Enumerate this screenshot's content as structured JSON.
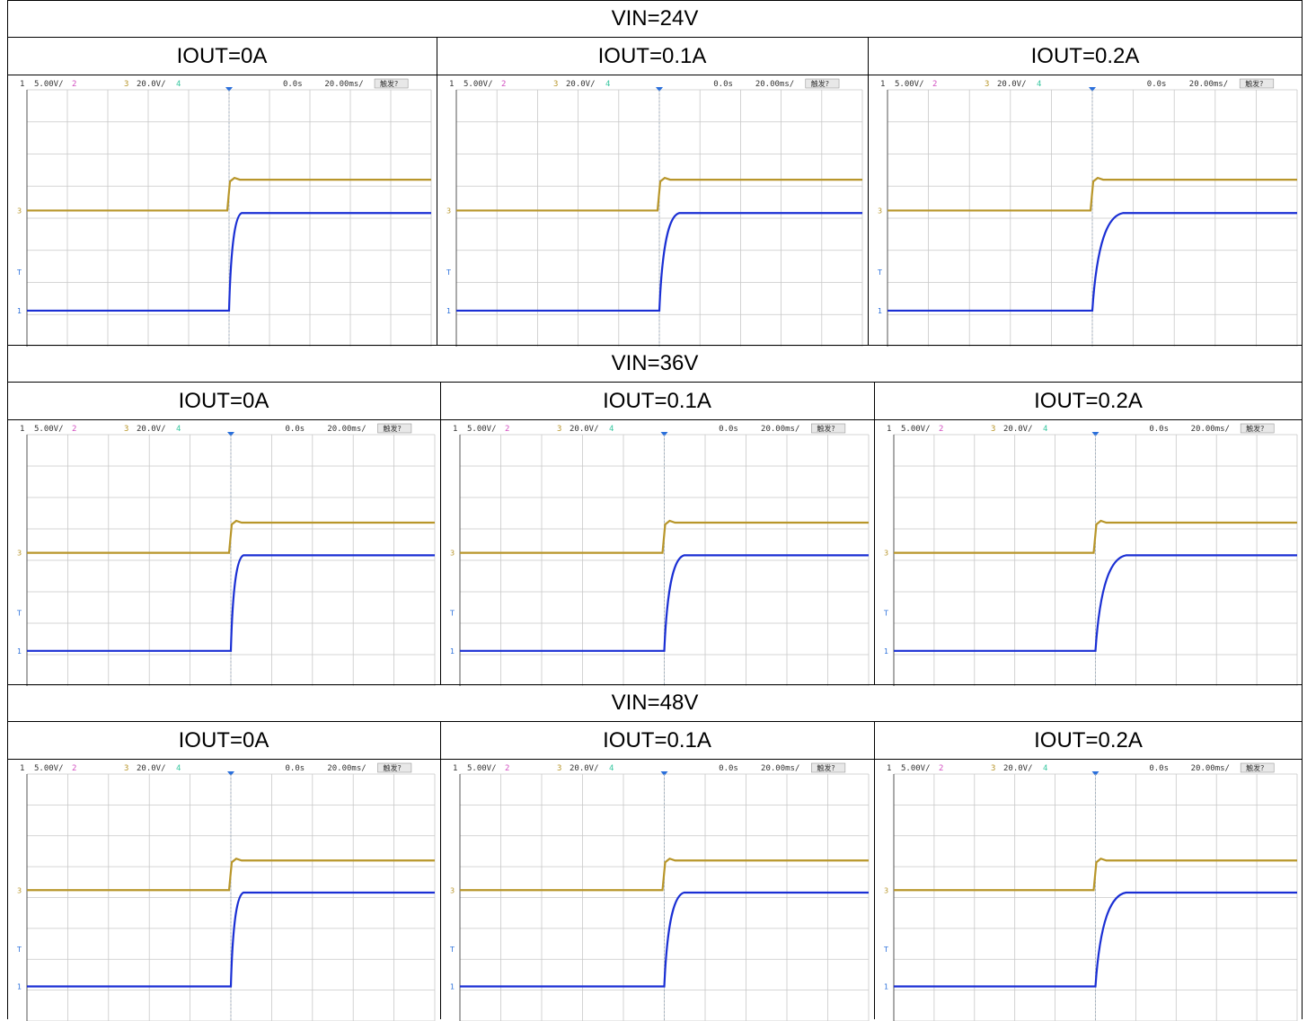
{
  "table": {
    "sections": [
      {
        "vin_label": "VIN=24V",
        "iout_labels": [
          "IOUT=0A",
          "IOUT=0.1A",
          "IOUT=0.2A"
        ]
      },
      {
        "vin_label": "VIN=36V",
        "iout_labels": [
          "IOUT=0A",
          "IOUT=0.1A",
          "IOUT=0.2A"
        ]
      },
      {
        "vin_label": "VIN=48V",
        "iout_labels": [
          "IOUT=0A",
          "IOUT=0.1A",
          "IOUT=0.2A"
        ]
      }
    ]
  },
  "scope": {
    "ch1_scale": "5.00V/",
    "ch2_label": "2",
    "ch3_scale": "20.0V/",
    "ch4_label": "4",
    "time_offset": "0.0s",
    "time_scale": "20.00ms/",
    "trigger_label": "触发?",
    "ch1_marker": "1",
    "ch3_marker": "3",
    "trigger_marker": "T",
    "colors": {
      "ch1": "#1a2fd4",
      "ch2": "#d24fc0",
      "ch3": "#b8962a",
      "ch4": "#38c7a0",
      "grid": "#c8c8c8"
    },
    "captures": [
      {
        "vin": "24V",
        "iout": "0A",
        "ch3_rise_step": 0.6,
        "ch1_rise_shape": "fast"
      },
      {
        "vin": "24V",
        "iout": "0.1A",
        "ch3_rise_step": 0.6,
        "ch1_rise_shape": "medium"
      },
      {
        "vin": "24V",
        "iout": "0.2A",
        "ch3_rise_step": 0.6,
        "ch1_rise_shape": "slow"
      },
      {
        "vin": "36V",
        "iout": "0A",
        "ch3_rise_step": 0.9,
        "ch1_rise_shape": "fast"
      },
      {
        "vin": "36V",
        "iout": "0.1A",
        "ch3_rise_step": 0.9,
        "ch1_rise_shape": "medium"
      },
      {
        "vin": "36V",
        "iout": "0.2A",
        "ch3_rise_step": 0.9,
        "ch1_rise_shape": "slow"
      },
      {
        "vin": "48V",
        "iout": "0A",
        "ch3_rise_step": 1.2,
        "ch1_rise_shape": "fast"
      },
      {
        "vin": "48V",
        "iout": "0.1A",
        "ch3_rise_step": 1.2,
        "ch1_rise_shape": "medium"
      },
      {
        "vin": "48V",
        "iout": "0.2A",
        "ch3_rise_step": 1.2,
        "ch1_rise_shape": "slow"
      }
    ]
  }
}
